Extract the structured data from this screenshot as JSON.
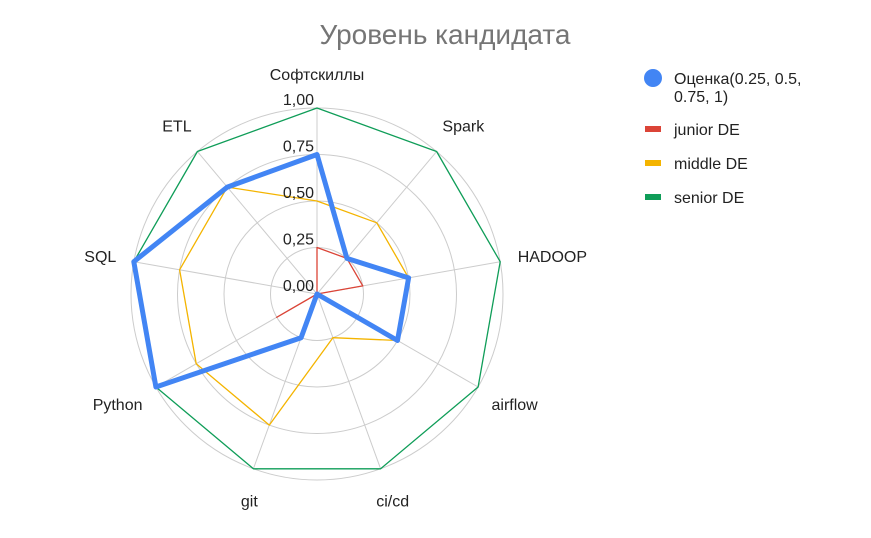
{
  "chart_data": {
    "type": "radar",
    "title": "Уровень кандидата",
    "categories": [
      "Софтскиллы",
      "Spark",
      "HADOOP",
      "airflow",
      "ci/cd",
      "git",
      "Python",
      "SQL",
      "ETL"
    ],
    "ticks": [
      "0,00",
      "0,25",
      "0,50",
      "0,75",
      "1,00"
    ],
    "ylim": [
      0,
      1
    ],
    "grid": true,
    "legend_position": "right",
    "series": [
      {
        "name": "Оценка(0.25, 0.5, 0.75, 1)",
        "color": "#4285F4",
        "values": [
          0.75,
          0.25,
          0.5,
          0.5,
          0.0,
          0.25,
          1.0,
          1.0,
          0.75
        ]
      },
      {
        "name": "junior DE",
        "color": "#DB4437",
        "values": [
          0.25,
          0.25,
          0.25,
          0.0,
          0.0,
          0.0,
          0.25,
          0.0,
          0.0
        ]
      },
      {
        "name": "middle DE",
        "color": "#F4B400",
        "values": [
          0.5,
          0.5,
          0.5,
          0.5,
          0.25,
          0.75,
          0.75,
          0.75,
          0.75
        ]
      },
      {
        "name": "senior DE",
        "color": "#0F9D58",
        "values": [
          1.0,
          1.0,
          1.0,
          1.0,
          1.0,
          1.0,
          1.0,
          1.0,
          1.0
        ]
      }
    ]
  }
}
